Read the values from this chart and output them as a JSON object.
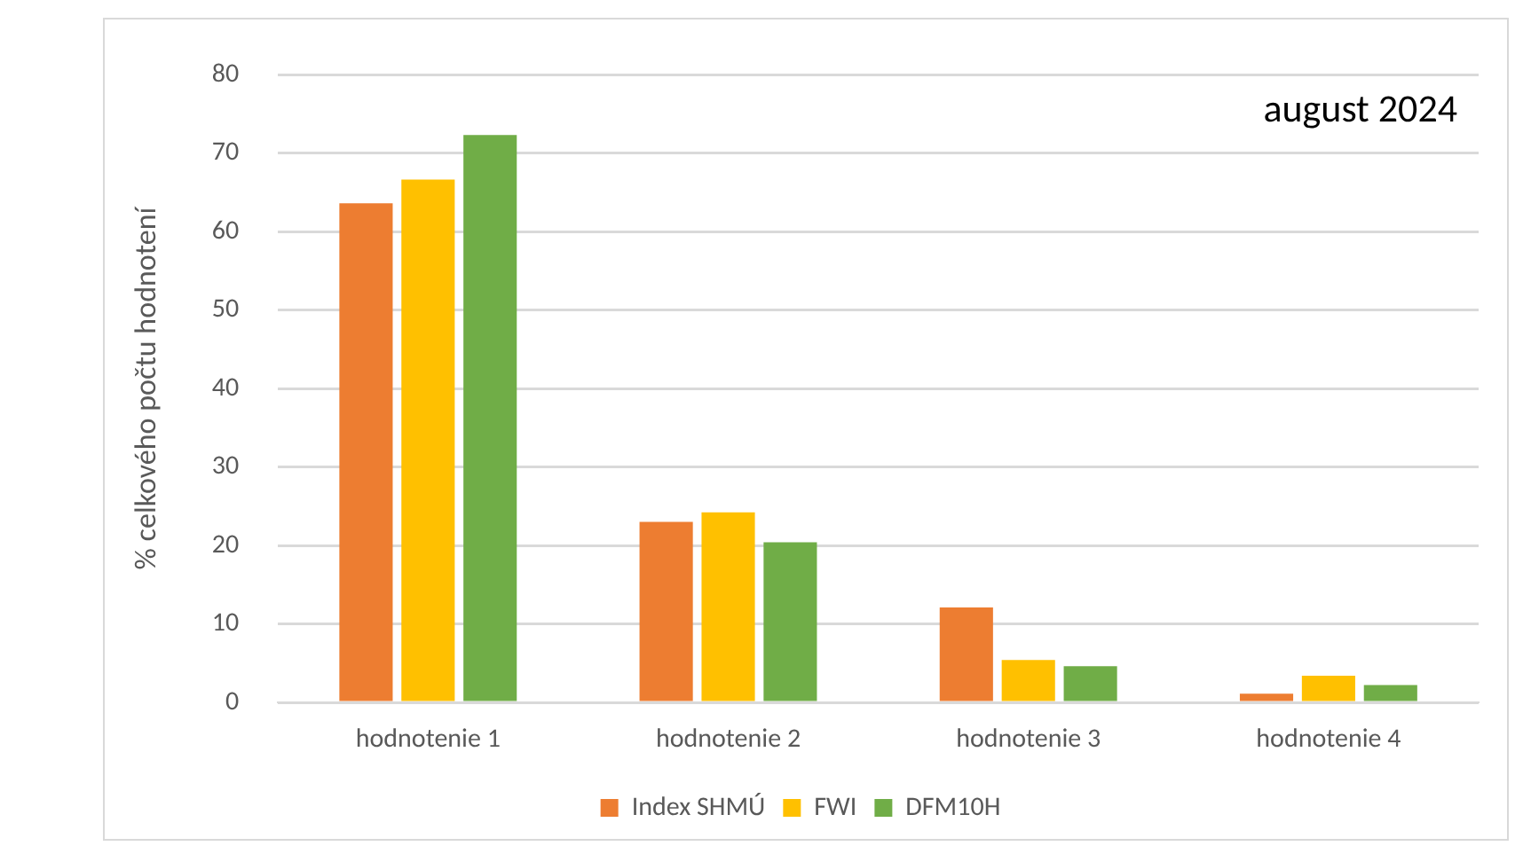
{
  "chart_data": {
    "type": "bar",
    "ylabel": "% celkového počtu hodnotení",
    "annotations": [
      "august 2024"
    ],
    "categories": [
      "hodnotenie 1",
      "hodnotenie 2",
      "hodnotenie 3",
      "hodnotenie 4"
    ],
    "series": [
      {
        "name": "Index SHMÚ",
        "color": "#ed7d31",
        "values": [
          63.6,
          23.0,
          12.1,
          1.1
        ]
      },
      {
        "name": "FWI",
        "color": "#ffc000",
        "values": [
          66.6,
          24.2,
          5.4,
          3.4
        ]
      },
      {
        "name": "DFM10H",
        "color": "#70ad47",
        "values": [
          72.3,
          20.4,
          4.6,
          2.2
        ]
      }
    ],
    "ylim": [
      0,
      80
    ],
    "yticks": [
      0,
      10,
      20,
      30,
      40,
      50,
      60,
      70,
      80
    ],
    "grid": "y",
    "legend": "bottom"
  }
}
